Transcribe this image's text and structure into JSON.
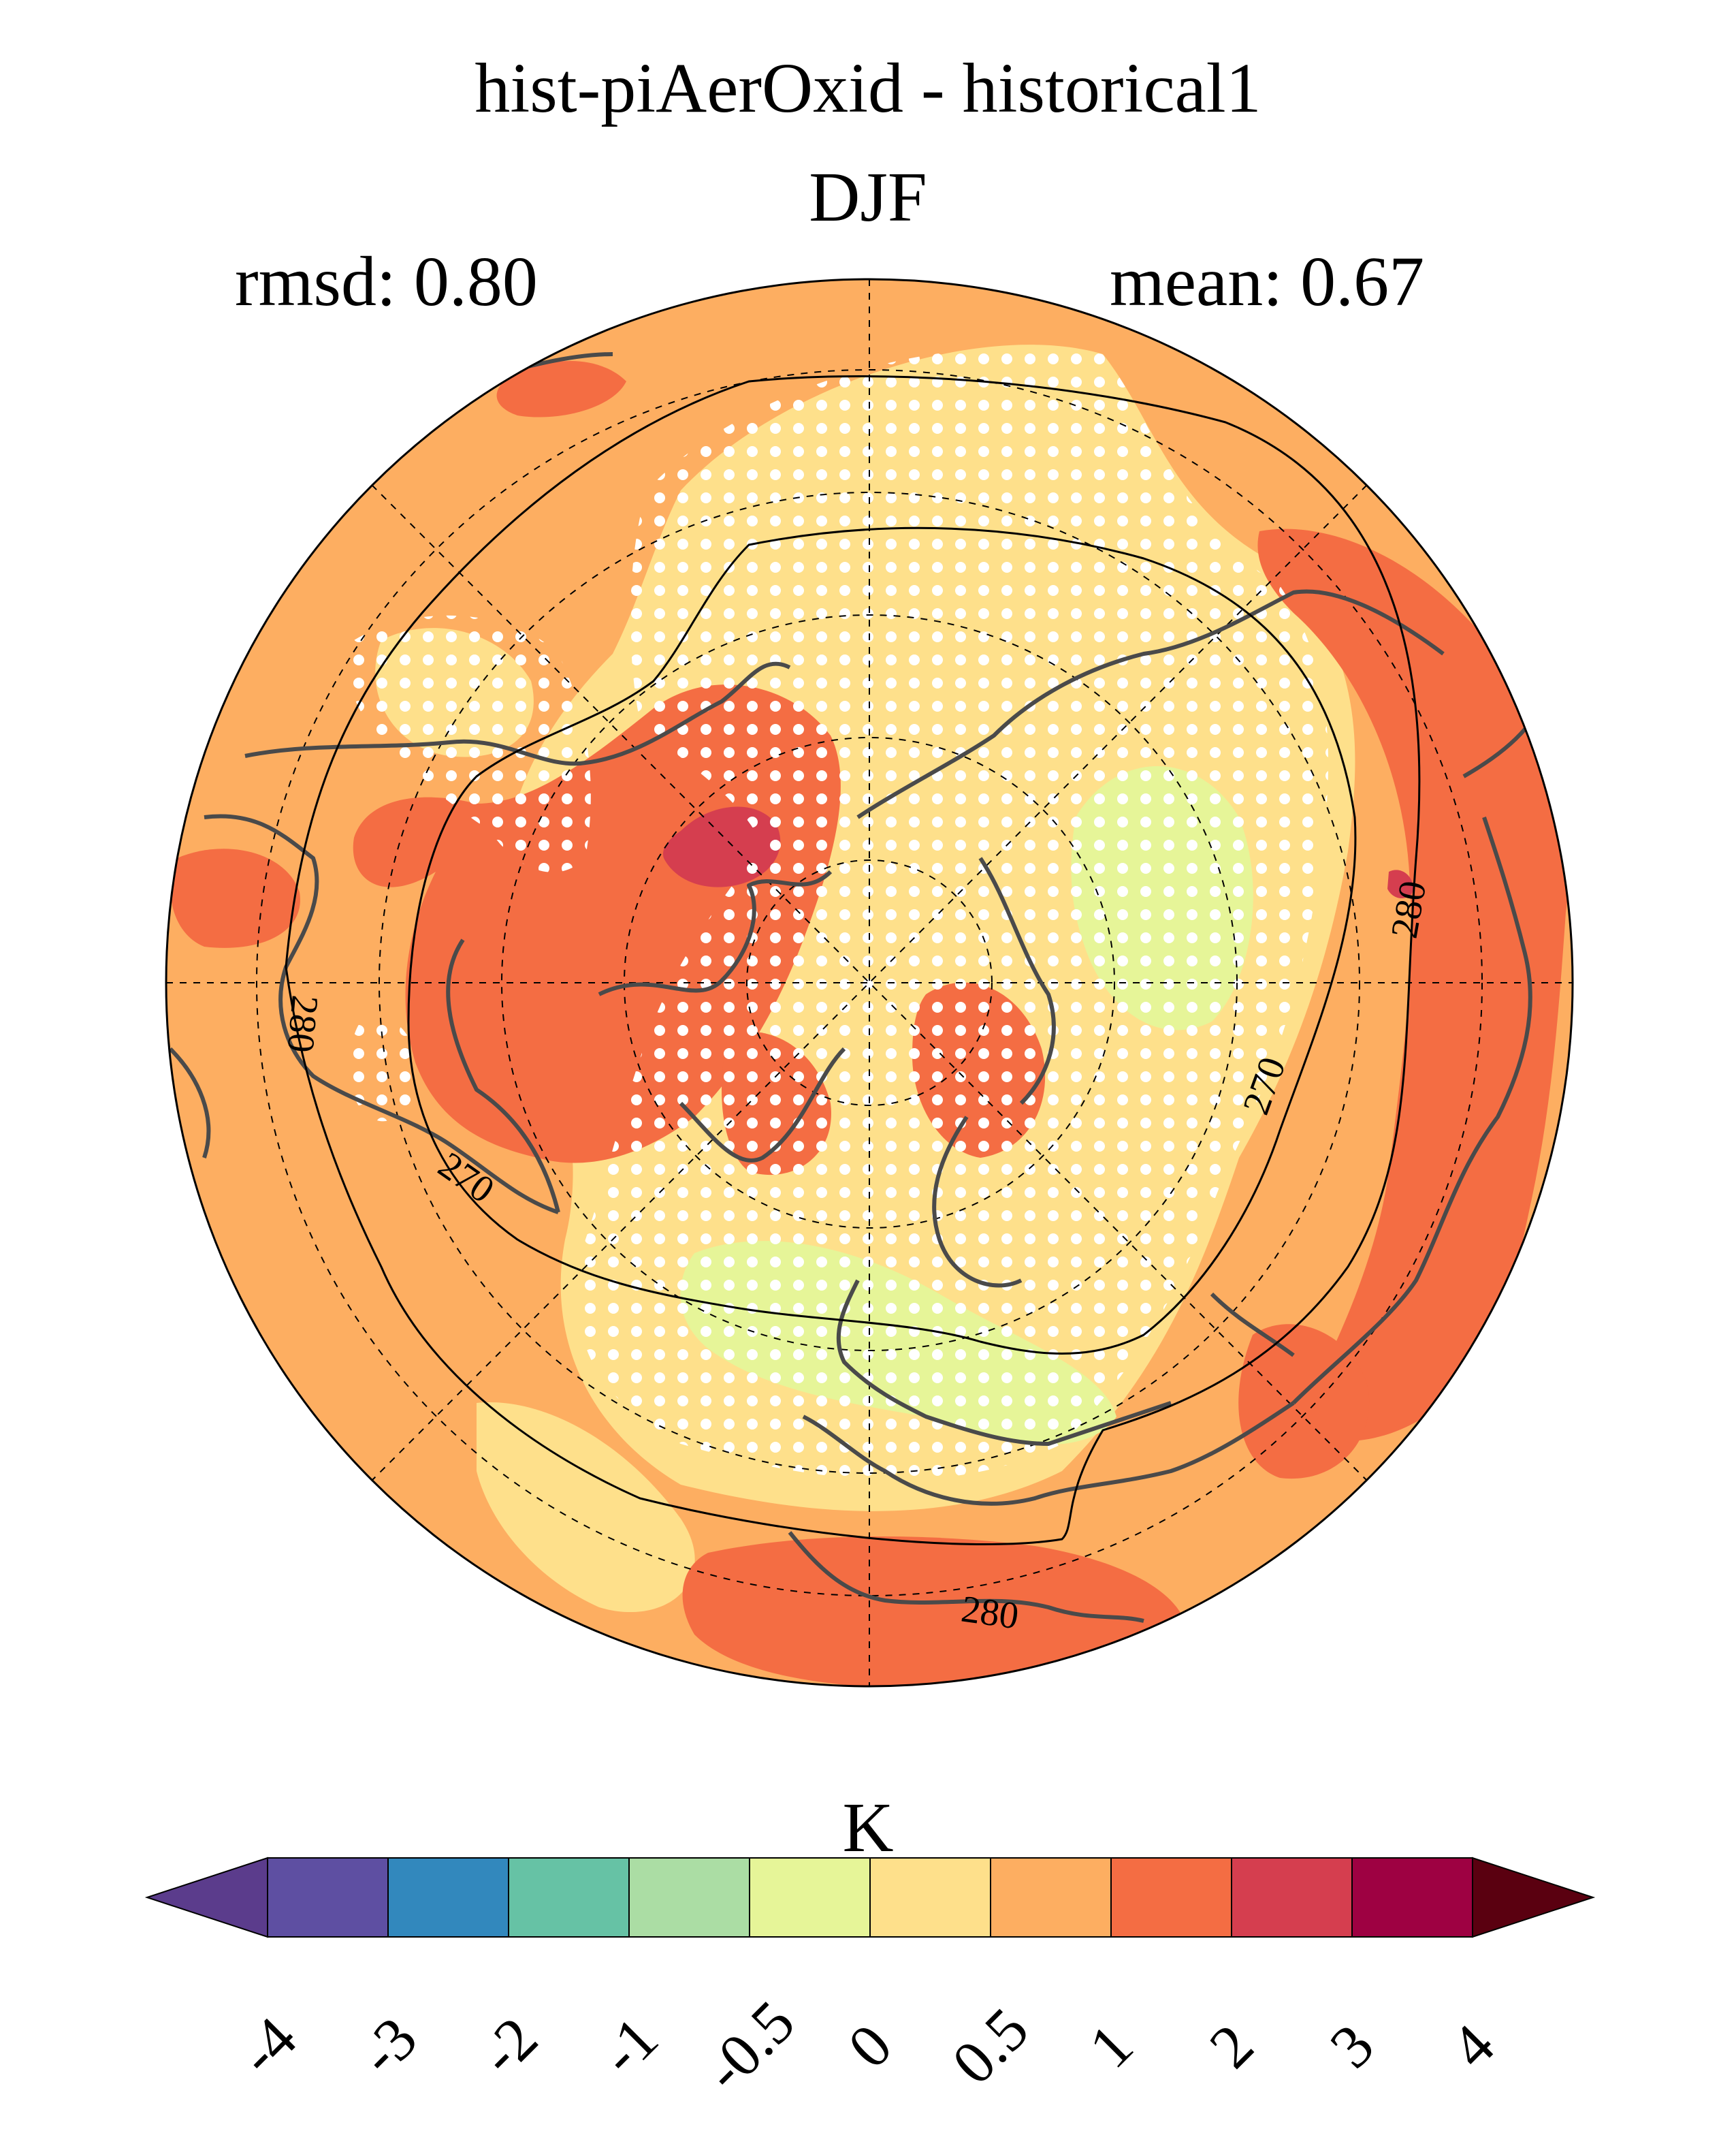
{
  "title": "hist-piAerOxid - historical1",
  "season": "DJF",
  "stats": {
    "rmsd": "rmsd: 0.80",
    "mean": "mean: 0.67"
  },
  "map": {
    "projection": "north-polar-stereographic",
    "contour_labels": [
      "280",
      "270",
      "270",
      "280",
      "280",
      "270"
    ],
    "stippling": "white dots"
  },
  "colorbar": {
    "unit": "K",
    "ticks": [
      "-4",
      "-3",
      "-2",
      "-1",
      "-0.5",
      "0",
      "0.5",
      "1",
      "2",
      "3",
      "4"
    ],
    "colors": [
      "#5b3c8c",
      "#5e4fa2",
      "#3288bd",
      "#66c2a5",
      "#abdda4",
      "#e6f598",
      "#fee08b",
      "#fdae61",
      "#f46d43",
      "#d53e4f",
      "#9e0142",
      "#5a0010"
    ]
  }
}
